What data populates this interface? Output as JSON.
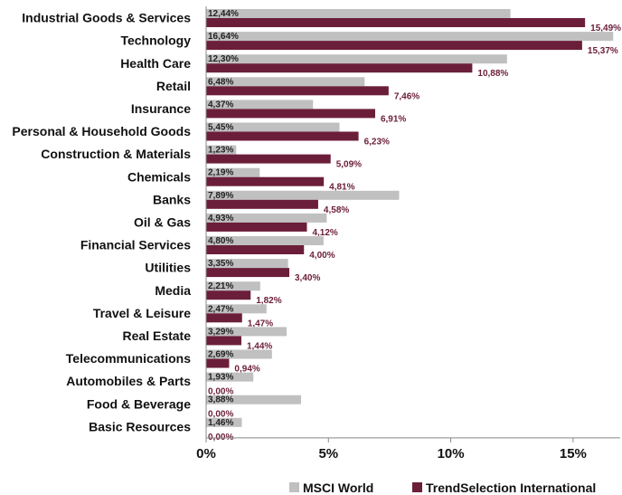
{
  "chart_data": {
    "type": "bar",
    "orientation": "horizontal",
    "categories": [
      "Industrial Goods & Services",
      "Technology",
      "Health Care",
      "Retail",
      "Insurance",
      "Personal & Household Goods",
      "Construction & Materials",
      "Chemicals",
      "Banks",
      "Oil & Gas",
      "Financial Services",
      "Utilities",
      "Media",
      "Travel & Leisure",
      "Real Estate",
      "Telecommunications",
      "Automobiles & Parts",
      "Food & Beverage",
      "Basic Resources"
    ],
    "series": [
      {
        "name": "MSCI World",
        "color": "#c0c0c0",
        "values": [
          12.44,
          16.64,
          12.3,
          6.48,
          4.37,
          5.45,
          1.23,
          2.19,
          7.89,
          4.93,
          4.8,
          3.35,
          2.21,
          2.47,
          3.29,
          2.69,
          1.93,
          3.88,
          1.46
        ],
        "labels": [
          "12,44%",
          "16,64%",
          "12,30%",
          "6,48%",
          "4,37%",
          "5,45%",
          "1,23%",
          "2,19%",
          "7,89%",
          "4,93%",
          "4,80%",
          "3,35%",
          "2,21%",
          "2,47%",
          "3,29%",
          "2,69%",
          "1,93%",
          "3,88%",
          "1,46%"
        ]
      },
      {
        "name": "TrendSelection International",
        "color": "#6b1e3a",
        "values": [
          15.49,
          15.37,
          10.88,
          7.46,
          6.91,
          6.23,
          5.09,
          4.81,
          4.58,
          4.12,
          4.0,
          3.4,
          1.82,
          1.47,
          1.44,
          0.94,
          0.0,
          0.0,
          0.0
        ],
        "labels": [
          "15,49%",
          "15,37%",
          "10,88%",
          "7,46%",
          "6,91%",
          "6,23%",
          "5,09%",
          "4,81%",
          "4,58%",
          "4,12%",
          "4,00%",
          "3,40%",
          "1,82%",
          "1,47%",
          "1,44%",
          "0,94%",
          "0,00%",
          "0,00%",
          "0,00%"
        ]
      }
    ],
    "xlim": [
      0,
      17
    ],
    "xticks": [
      0,
      5,
      10,
      15
    ],
    "xtick_labels": [
      "0%",
      "5%",
      "10%",
      "15%"
    ],
    "grid": false,
    "legend_position": "bottom"
  }
}
